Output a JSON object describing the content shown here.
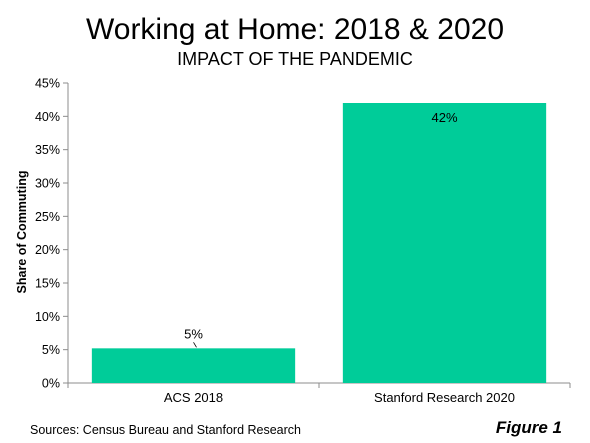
{
  "chart_data": {
    "type": "bar",
    "title": "Working at Home: 2018 & 2020",
    "subtitle": "IMPACT OF THE PANDEMIC",
    "ylabel": "Share of Commuting",
    "xlabel": "",
    "categories": [
      "ACS 2018",
      "Stanford Research 2020"
    ],
    "values": [
      5.2,
      42
    ],
    "data_labels": [
      "5%",
      "42%"
    ],
    "ylim": [
      0,
      45
    ],
    "yticks": [
      0,
      5,
      10,
      15,
      20,
      25,
      30,
      35,
      40,
      45
    ],
    "ytick_labels": [
      "0%",
      "5%",
      "10%",
      "15%",
      "20%",
      "25%",
      "30%",
      "35%",
      "40%",
      "45%"
    ],
    "bar_color": "#00cc99",
    "grid": false,
    "legend": "none"
  },
  "footer": {
    "source": "Sources: Census Bureau and Stanford Research",
    "figure": "Figure 1"
  }
}
